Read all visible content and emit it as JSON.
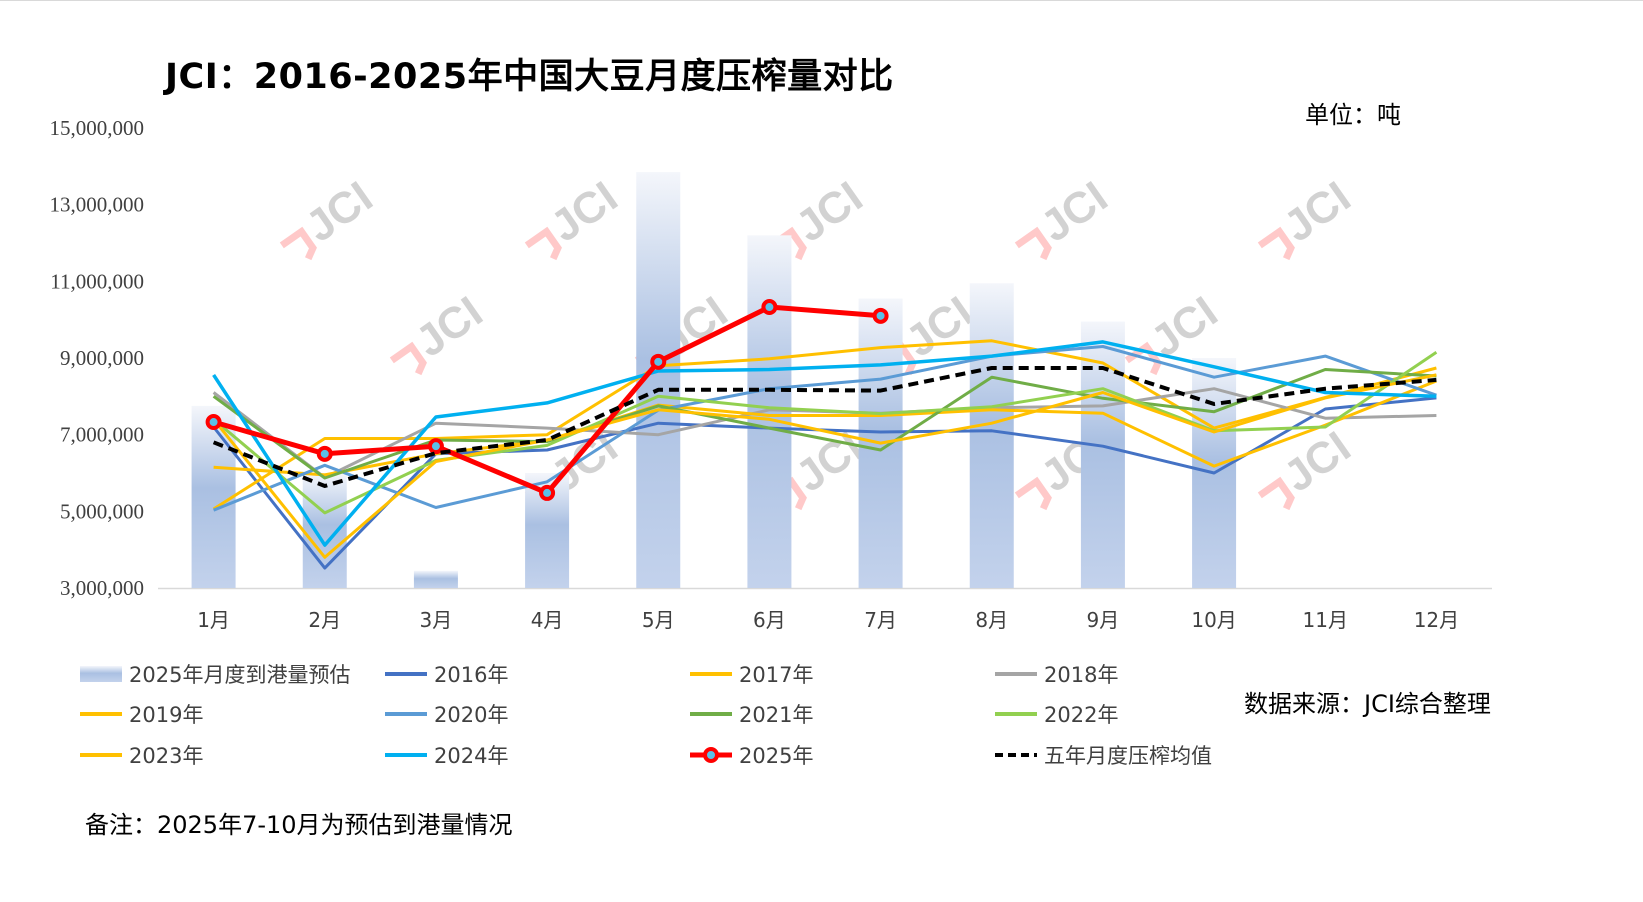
{
  "title": "JCI：2016-2025年中国大豆月度压榨量对比",
  "unit_label": "单位：吨",
  "source_label": "数据来源：JCI综合整理",
  "note": "备注：2025年7-10月为预估到港量情况",
  "watermark": "JCI",
  "chart_data": {
    "type": "bar+line",
    "title": "JCI：2016-2025年中国大豆月度压榨量对比",
    "xlabel": "",
    "ylabel": "吨",
    "ylim": [
      3000000,
      15000000
    ],
    "yticks": [
      3000000,
      5000000,
      7000000,
      9000000,
      11000000,
      13000000,
      15000000
    ],
    "ytick_labels": [
      "3,000,000",
      "5,000,000",
      "7,000,000",
      "9,000,000",
      "11,000,000",
      "13,000,000",
      "15,000,000"
    ],
    "categories": [
      "1月",
      "2月",
      "3月",
      "4月",
      "5月",
      "6月",
      "7月",
      "8月",
      "9月",
      "10月",
      "11月",
      "12月"
    ],
    "legend_position": "bottom",
    "bar_series": {
      "name": "2025年月度到港量预估",
      "color": "#a9bfe3",
      "values": [
        7750000,
        6000000,
        3450000,
        6000000,
        13850000,
        12200000,
        10550000,
        10950000,
        9950000,
        9000000,
        null,
        null
      ]
    },
    "series": [
      {
        "name": "2016年",
        "color": "#4472c4",
        "style": "solid",
        "values": [
          7200000,
          3520000,
          6500000,
          6600000,
          7300000,
          7170000,
          7070000,
          7100000,
          6700000,
          6000000,
          7670000,
          7960000
        ]
      },
      {
        "name": "2017年",
        "color": "#ffc000",
        "style": "solid",
        "values": [
          5060000,
          6900000,
          6900000,
          7000000,
          8800000,
          8980000,
          9270000,
          9450000,
          8870000,
          7170000,
          7970000,
          8740000
        ]
      },
      {
        "name": "2018年",
        "color": "#a5a5a5",
        "style": "solid",
        "values": [
          8100000,
          5880000,
          7300000,
          7170000,
          7000000,
          7650000,
          7560000,
          7700000,
          7750000,
          8200000,
          7430000,
          7500000
        ]
      },
      {
        "name": "2019年",
        "color": "#ffc000",
        "style": "solid",
        "values": [
          6150000,
          5950000,
          6500000,
          6850000,
          7770000,
          7500000,
          7500000,
          7650000,
          7560000,
          6180000,
          7250000,
          8400000
        ]
      },
      {
        "name": "2020年",
        "color": "#5b9bd5",
        "style": "solid",
        "values": [
          5030000,
          6200000,
          5100000,
          5770000,
          7640000,
          8200000,
          8450000,
          9050000,
          9300000,
          8500000,
          9050000,
          8030000
        ]
      },
      {
        "name": "2021年",
        "color": "#70ad47",
        "style": "solid",
        "values": [
          8000000,
          5870000,
          6860000,
          6820000,
          7750000,
          7170000,
          6600000,
          8500000,
          7950000,
          7600000,
          8700000,
          8530000
        ]
      },
      {
        "name": "2022年",
        "color": "#92d050",
        "style": "solid",
        "values": [
          7400000,
          4960000,
          6330000,
          6720000,
          8000000,
          7700000,
          7550000,
          7730000,
          8200000,
          7100000,
          7200000,
          9150000
        ]
      },
      {
        "name": "2023年",
        "color": "#ffc000",
        "style": "solid",
        "values": [
          7400000,
          3800000,
          6300000,
          6860000,
          7650000,
          7400000,
          6780000,
          7300000,
          8100000,
          7070000,
          7960000,
          8560000
        ]
      },
      {
        "name": "2024年",
        "color": "#00b0f0",
        "style": "solid",
        "values": [
          8560000,
          4120000,
          7460000,
          7830000,
          8660000,
          8700000,
          8820000,
          9050000,
          9420000,
          8770000,
          8100000,
          8000000
        ]
      },
      {
        "name": "2025年",
        "color": "#ff0000",
        "style": "marker",
        "values": [
          7330000,
          6500000,
          6700000,
          5480000,
          8900000,
          10330000,
          10100000,
          null,
          null,
          null,
          null,
          null
        ]
      },
      {
        "name": "五年月度压榨均值",
        "color": "#000000",
        "style": "dashed",
        "values": [
          6800000,
          5660000,
          6520000,
          6860000,
          8170000,
          8170000,
          8150000,
          8740000,
          8740000,
          7800000,
          8200000,
          8430000
        ]
      }
    ]
  }
}
